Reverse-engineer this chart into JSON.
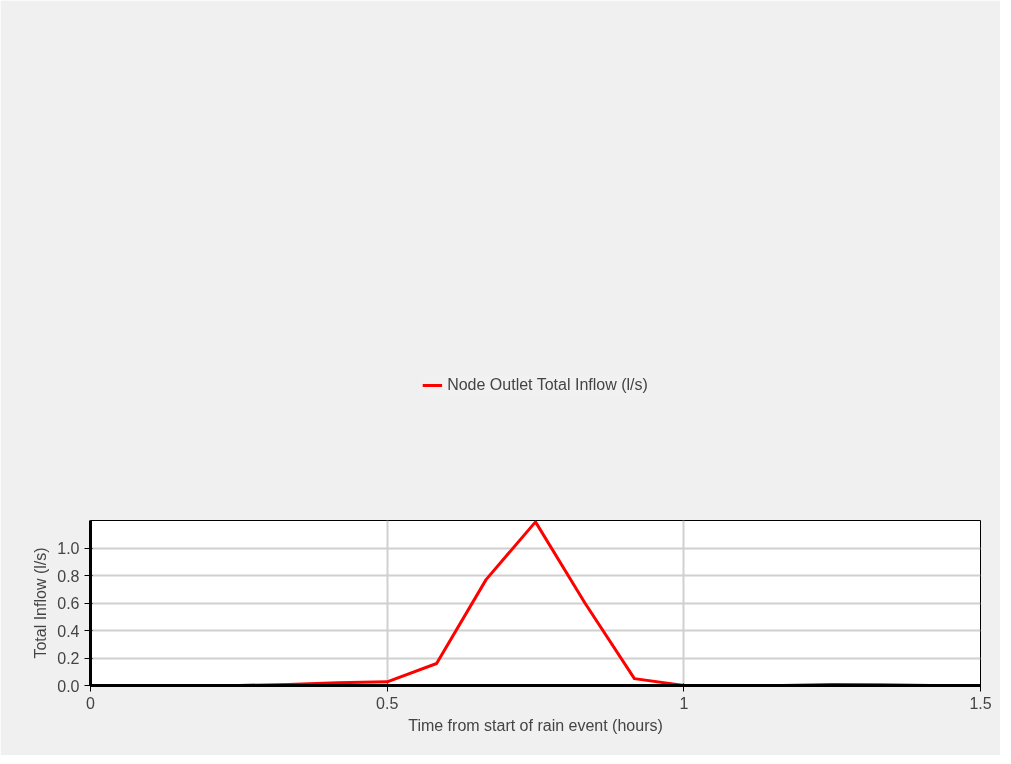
{
  "chart_data": {
    "type": "line",
    "xlabel": "Time from start of rain event (hours)",
    "ylabel": "Total Inflow (l/s)",
    "x": [
      0.0833,
      0.1667,
      0.25,
      0.3333,
      0.4167,
      0.5,
      0.5833,
      0.6667,
      0.75,
      0.8333,
      0.9167,
      1.0,
      1.0833,
      1.1667,
      1.25,
      1.3333,
      1.4167,
      1.5
    ],
    "series": [
      {
        "name": "Node Outlet Total Inflow (l/s)",
        "color": "#ff0000",
        "values": [
          0,
          0,
          0,
          0.008,
          0.02,
          0.027,
          0.16,
          0.77,
          1.19,
          0.6,
          0.05,
          0,
          0,
          0,
          0.008,
          0.005,
          0,
          0
        ]
      }
    ],
    "xlim": [
      0,
      1.5
    ],
    "ylim": [
      0,
      1.2
    ],
    "xticks": [
      0,
      0.5,
      1,
      1.5
    ],
    "yticks": [
      {
        "value": 0,
        "label": "0.0"
      },
      {
        "value": 0.2,
        "label": "0.2"
      },
      {
        "value": 0.4,
        "label": "0.4"
      },
      {
        "value": 0.6,
        "label": "0.6"
      },
      {
        "value": 0.8,
        "label": "0.8"
      },
      {
        "value": 1.0,
        "label": "1.0"
      }
    ],
    "grid": true,
    "legend": "top",
    "marker": "none",
    "line_style": "solid"
  }
}
